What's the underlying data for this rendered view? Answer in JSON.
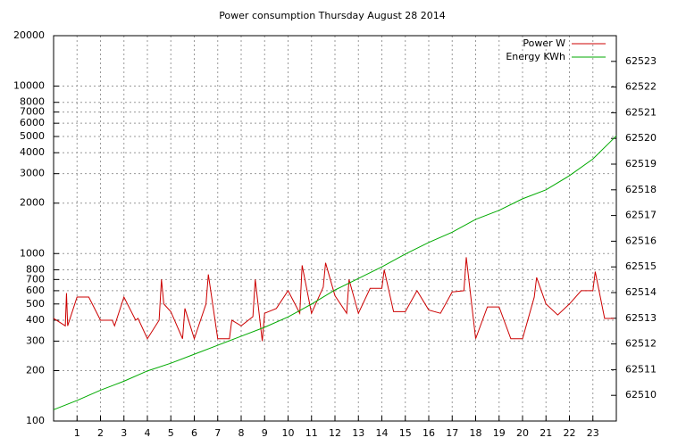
{
  "chart_data": {
    "type": "line",
    "title": "Power consumption Thursday August 28 2014",
    "xlim": [
      0,
      24
    ],
    "xticks": [
      1,
      2,
      3,
      4,
      5,
      6,
      7,
      8,
      9,
      10,
      11,
      12,
      13,
      14,
      15,
      16,
      17,
      18,
      19,
      20,
      21,
      22,
      23
    ],
    "ylim": [
      100,
      20000
    ],
    "yscale": "log",
    "yticks": [
      100,
      200,
      300,
      400,
      500,
      600,
      700,
      800,
      1000,
      2000,
      3000,
      4000,
      5000,
      6000,
      7000,
      8000,
      10000,
      20000
    ],
    "y2lim": [
      62509,
      62524
    ],
    "y2ticks": [
      62510,
      62511,
      62512,
      62513,
      62514,
      62515,
      62516,
      62517,
      62518,
      62519,
      62520,
      62521,
      62522,
      62523
    ],
    "grid": true,
    "legend": "top-right",
    "series": [
      {
        "name": "Power W",
        "color": "#cc0000",
        "x": [
          0,
          0.5,
          0.55,
          0.6,
          1,
          1.5,
          2,
          2.5,
          2.6,
          3,
          3.5,
          3.6,
          4,
          4.5,
          4.6,
          4.7,
          5,
          5.5,
          5.6,
          6,
          6.5,
          6.6,
          7,
          7.5,
          7.6,
          8,
          8.5,
          8.6,
          8.9,
          9,
          9.5,
          10,
          10.5,
          10.6,
          11,
          11.5,
          11.6,
          12,
          12.5,
          12.6,
          13,
          13.5,
          14,
          14.1,
          14.5,
          15,
          15.5,
          16,
          16.5,
          17,
          17.5,
          17.6,
          18,
          18.5,
          19,
          19.5,
          20,
          20.5,
          20.6,
          21,
          21.5,
          22,
          22.5,
          23,
          23.1,
          23.5,
          23.9
        ],
        "values": [
          410,
          370,
          580,
          370,
          550,
          550,
          400,
          400,
          370,
          550,
          400,
          410,
          310,
          400,
          700,
          500,
          450,
          310,
          470,
          310,
          500,
          750,
          310,
          310,
          400,
          370,
          420,
          700,
          300,
          440,
          470,
          600,
          440,
          850,
          440,
          630,
          880,
          560,
          440,
          700,
          440,
          620,
          620,
          800,
          450,
          450,
          600,
          460,
          440,
          590,
          600,
          950,
          310,
          480,
          480,
          310,
          310,
          550,
          720,
          500,
          430,
          500,
          600,
          600,
          780,
          410,
          410
        ]
      },
      {
        "name": "Energy KWh",
        "color": "#00aa00",
        "axis": "y2",
        "x": [
          0,
          1,
          2,
          3,
          4,
          5,
          6,
          7,
          8,
          9,
          10,
          11,
          12,
          13,
          14,
          15,
          16,
          17,
          18,
          19,
          20,
          21,
          22,
          23,
          24
        ],
        "values": [
          62509.44,
          62509.8,
          62510.2,
          62510.55,
          62510.95,
          62511.25,
          62511.6,
          62511.95,
          62512.3,
          62512.65,
          62513.05,
          62513.55,
          62514.1,
          62514.55,
          62515.0,
          62515.5,
          62515.95,
          62516.35,
          62516.85,
          62517.2,
          62517.65,
          62518.0,
          62518.55,
          62519.2,
          62520.1
        ]
      }
    ]
  }
}
